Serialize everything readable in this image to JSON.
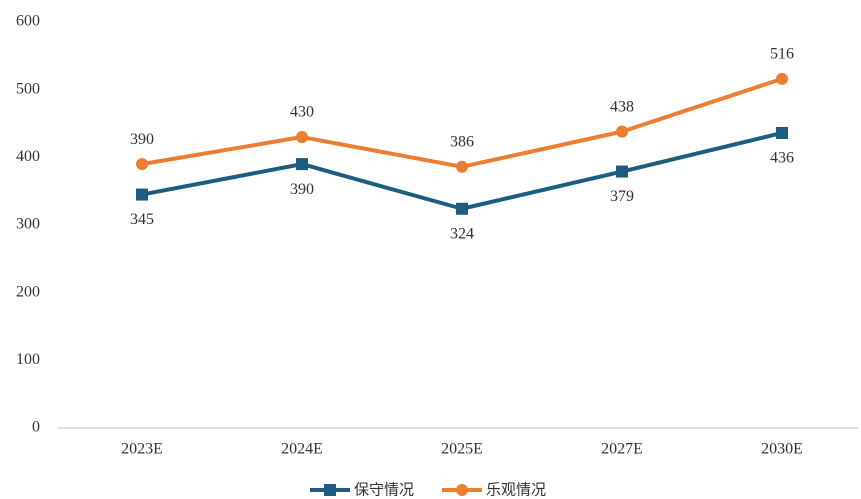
{
  "chart_data": {
    "type": "line",
    "categories": [
      "2023E",
      "2024E",
      "2025E",
      "2027E",
      "2030E"
    ],
    "series": [
      {
        "name": "保守情况",
        "color": "#1d5e80",
        "marker": "square",
        "label_position": "below",
        "values": [
          345,
          390,
          324,
          379,
          436
        ]
      },
      {
        "name": "乐观情况",
        "color": "#ed7d31",
        "marker": "circle",
        "label_position": "above",
        "values": [
          390,
          430,
          386,
          438,
          516
        ]
      }
    ],
    "ylim": [
      0,
      600
    ],
    "yticks": [
      0,
      100,
      200,
      300,
      400,
      500,
      600
    ],
    "grid": false,
    "legend": "bottom"
  }
}
